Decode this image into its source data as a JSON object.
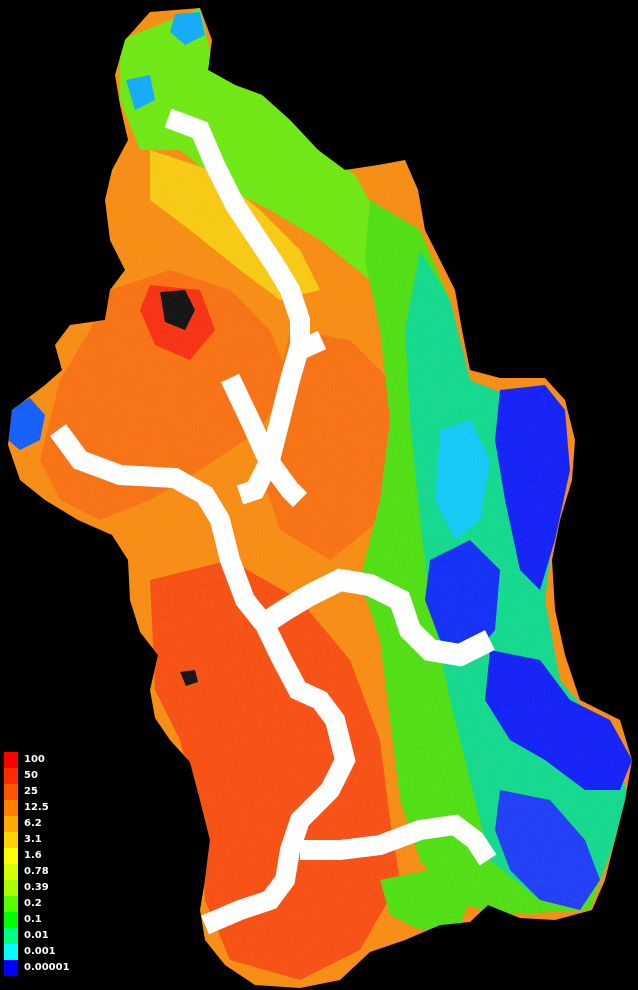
{
  "legend": {
    "entries": [
      {
        "label": "100",
        "color": "#ff0000"
      },
      {
        "label": "50",
        "color": "#ff2a00"
      },
      {
        "label": "25",
        "color": "#ff5500"
      },
      {
        "label": "12.5",
        "color": "#ff8000"
      },
      {
        "label": "6.2",
        "color": "#ffaa00"
      },
      {
        "label": "3.1",
        "color": "#ffd400"
      },
      {
        "label": "1.6",
        "color": "#ffff00"
      },
      {
        "label": "0.78",
        "color": "#d4ff00"
      },
      {
        "label": "0.39",
        "color": "#aaff00"
      },
      {
        "label": "0.2",
        "color": "#55ff00"
      },
      {
        "label": "0.1",
        "color": "#00ff00"
      },
      {
        "label": "0.01",
        "color": "#00ff80"
      },
      {
        "label": "0.001",
        "color": "#00ffff"
      },
      {
        "label": "0.00001",
        "color": "#0000ff"
      }
    ]
  },
  "colors": {
    "background": "#000000",
    "river_corridor": "#ffffff",
    "high": "#ff3300",
    "mid_high": "#ff8800",
    "mid": "#ffdd00",
    "mid_low": "#66ee00",
    "low": "#00dd66",
    "very_low": "#00ddff",
    "lowest": "#0000ff"
  }
}
